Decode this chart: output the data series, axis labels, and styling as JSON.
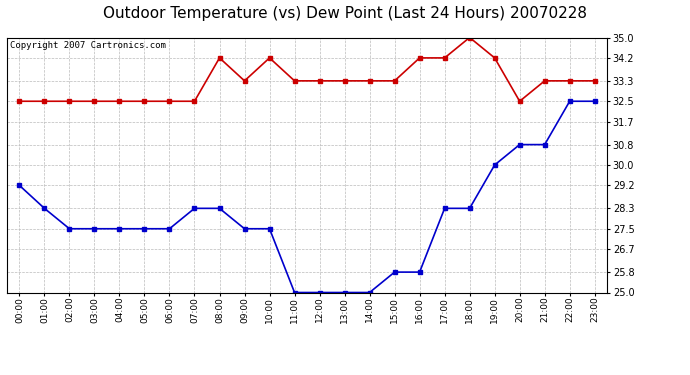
{
  "title": "Outdoor Temperature (vs) Dew Point (Last 24 Hours) 20070228",
  "copyright_text": "Copyright 2007 Cartronics.com",
  "hours": [
    "00:00",
    "01:00",
    "02:00",
    "03:00",
    "04:00",
    "05:00",
    "06:00",
    "07:00",
    "08:00",
    "09:00",
    "10:00",
    "11:00",
    "12:00",
    "13:00",
    "14:00",
    "15:00",
    "16:00",
    "17:00",
    "18:00",
    "19:00",
    "20:00",
    "21:00",
    "22:00",
    "23:00"
  ],
  "temp_data": [
    29.2,
    28.3,
    27.5,
    27.5,
    27.5,
    27.5,
    27.5,
    28.3,
    28.3,
    27.5,
    27.5,
    25.0,
    25.0,
    25.0,
    25.0,
    25.8,
    25.8,
    28.3,
    28.3,
    30.0,
    30.8,
    30.8,
    32.5,
    32.5
  ],
  "dew_data": [
    32.5,
    32.5,
    32.5,
    32.5,
    32.5,
    32.5,
    32.5,
    32.5,
    34.2,
    33.3,
    34.2,
    33.3,
    33.3,
    33.3,
    33.3,
    33.3,
    34.2,
    34.2,
    35.0,
    34.2,
    32.5,
    33.3,
    33.3,
    33.3
  ],
  "temp_color": "#0000cc",
  "dew_color": "#cc0000",
  "bg_color": "#ffffff",
  "plot_bg_color": "#ffffff",
  "grid_color": "#bbbbbb",
  "ylim": [
    25.0,
    35.0
  ],
  "yticks": [
    25.0,
    25.8,
    26.7,
    27.5,
    28.3,
    29.2,
    30.0,
    30.8,
    31.7,
    32.5,
    33.3,
    34.2,
    35.0
  ],
  "title_fontsize": 11,
  "copyright_fontsize": 6.5,
  "tick_fontsize": 7,
  "xlabel_fontsize": 6.5
}
